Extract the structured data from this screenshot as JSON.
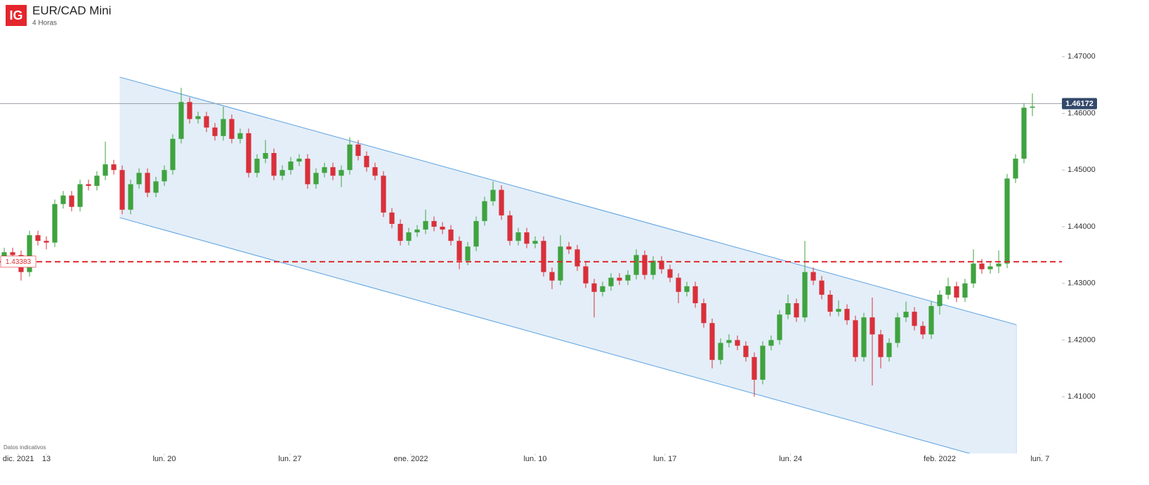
{
  "header": {
    "logo": "IG",
    "title": "EUR/CAD Mini",
    "subtitle": "4 Horas",
    "note": "Datos indicativos"
  },
  "chart_data": {
    "type": "candlestick",
    "up_color": "#3fa33f",
    "down_color": "#d9303a",
    "xlim": [
      0,
      124.5
    ],
    "ylim": [
      1.4,
      1.48
    ],
    "yticks": [
      {
        "value": 1.41,
        "label": "1.41000"
      },
      {
        "value": 1.42,
        "label": "1.42000"
      },
      {
        "value": 1.43,
        "label": "1.43000"
      },
      {
        "value": 1.44,
        "label": "1.44000"
      },
      {
        "value": 1.45,
        "label": "1.45000"
      },
      {
        "value": 1.46,
        "label": "1.46000"
      },
      {
        "value": 1.47,
        "label": "1.47000"
      }
    ],
    "xticks": [
      {
        "value": 2.17,
        "label": "dic. 2021"
      },
      {
        "value": 5.5,
        "label": "13"
      },
      {
        "value": 19.5,
        "label": "lun. 20"
      },
      {
        "value": 34.4,
        "label": "lun. 27"
      },
      {
        "value": 48.75,
        "label": "ene. 2022"
      },
      {
        "value": 63.5,
        "label": "lun. 10"
      },
      {
        "value": 78.9,
        "label": "lun. 17"
      },
      {
        "value": 93.8,
        "label": "lun. 24"
      },
      {
        "value": 111.5,
        "label": "feb. 2022"
      },
      {
        "value": 123.4,
        "label": "lun. 7"
      }
    ],
    "current_price": 1.46172,
    "current_color": "#9aa0a6",
    "current_box_color": "#33496a",
    "reference_level": 1.43383,
    "reference_color": "#e0282e",
    "channel": {
      "x": [
        14.2,
        120.6
      ],
      "upper": [
        1.4664,
        1.4227
      ],
      "lower": [
        1.4416,
        1.3977
      ],
      "fill": "#e3eef8",
      "stroke": "#5aa0e0"
    },
    "candles": [
      [
        1.434,
        1.4363,
        1.4332,
        1.4355
      ],
      [
        1.4355,
        1.4363,
        1.4342,
        1.435
      ],
      [
        1.435,
        1.4358,
        1.4305,
        1.432
      ],
      [
        1.432,
        1.4393,
        1.4312,
        1.4385
      ],
      [
        1.4385,
        1.4393,
        1.4367,
        1.4375
      ],
      [
        1.4375,
        1.4383,
        1.436,
        1.4372
      ],
      [
        1.4372,
        1.4448,
        1.4364,
        1.444
      ],
      [
        1.444,
        1.4463,
        1.4432,
        1.4455
      ],
      [
        1.4455,
        1.4463,
        1.4427,
        1.4435
      ],
      [
        1.4435,
        1.4483,
        1.4427,
        1.4475
      ],
      [
        1.4475,
        1.4483,
        1.4464,
        1.4472
      ],
      [
        1.4472,
        1.4498,
        1.4464,
        1.449
      ],
      [
        1.449,
        1.455,
        1.4482,
        1.451
      ],
      [
        1.451,
        1.4518,
        1.4492,
        1.45
      ],
      [
        1.45,
        1.4508,
        1.4422,
        1.443
      ],
      [
        1.443,
        1.4483,
        1.4422,
        1.4475
      ],
      [
        1.4475,
        1.4503,
        1.4467,
        1.4495
      ],
      [
        1.4495,
        1.4503,
        1.4452,
        1.446
      ],
      [
        1.446,
        1.4488,
        1.4452,
        1.448
      ],
      [
        1.448,
        1.4508,
        1.4472,
        1.45
      ],
      [
        1.45,
        1.4563,
        1.4492,
        1.4555
      ],
      [
        1.4555,
        1.4645,
        1.4547,
        1.462
      ],
      [
        1.462,
        1.4628,
        1.4582,
        1.459
      ],
      [
        1.459,
        1.4603,
        1.4582,
        1.4595
      ],
      [
        1.4595,
        1.4603,
        1.4567,
        1.4575
      ],
      [
        1.4575,
        1.4583,
        1.4552,
        1.456
      ],
      [
        1.456,
        1.4612,
        1.4552,
        1.459
      ],
      [
        1.459,
        1.4598,
        1.4547,
        1.4555
      ],
      [
        1.4555,
        1.4573,
        1.4547,
        1.4565
      ],
      [
        1.4565,
        1.4573,
        1.4487,
        1.4495
      ],
      [
        1.4495,
        1.4528,
        1.4487,
        1.452
      ],
      [
        1.452,
        1.4553,
        1.4512,
        1.453
      ],
      [
        1.453,
        1.4538,
        1.4482,
        1.449
      ],
      [
        1.449,
        1.4508,
        1.4482,
        1.45
      ],
      [
        1.45,
        1.4523,
        1.4492,
        1.4515
      ],
      [
        1.4515,
        1.4528,
        1.4507,
        1.452
      ],
      [
        1.452,
        1.4528,
        1.4467,
        1.4475
      ],
      [
        1.4475,
        1.4503,
        1.4467,
        1.4495
      ],
      [
        1.4495,
        1.4513,
        1.4487,
        1.4505
      ],
      [
        1.4505,
        1.4513,
        1.4482,
        1.449
      ],
      [
        1.449,
        1.4508,
        1.447,
        1.45
      ],
      [
        1.45,
        1.4558,
        1.4492,
        1.4545
      ],
      [
        1.4545,
        1.4553,
        1.4517,
        1.4525
      ],
      [
        1.4525,
        1.4533,
        1.4497,
        1.4505
      ],
      [
        1.4505,
        1.4513,
        1.4482,
        1.449
      ],
      [
        1.449,
        1.4498,
        1.4417,
        1.4425
      ],
      [
        1.4425,
        1.4433,
        1.4397,
        1.4405
      ],
      [
        1.4405,
        1.4413,
        1.4367,
        1.4375
      ],
      [
        1.4375,
        1.4398,
        1.4367,
        1.439
      ],
      [
        1.439,
        1.4403,
        1.4382,
        1.4395
      ],
      [
        1.4395,
        1.443,
        1.4387,
        1.441
      ],
      [
        1.441,
        1.4418,
        1.4392,
        1.44
      ],
      [
        1.44,
        1.4408,
        1.4387,
        1.4395
      ],
      [
        1.4395,
        1.4403,
        1.4367,
        1.4375
      ],
      [
        1.4375,
        1.4383,
        1.4325,
        1.434
      ],
      [
        1.434,
        1.4373,
        1.4332,
        1.4365
      ],
      [
        1.4365,
        1.4418,
        1.4357,
        1.441
      ],
      [
        1.441,
        1.4453,
        1.4402,
        1.4445
      ],
      [
        1.4445,
        1.448,
        1.4437,
        1.4465
      ],
      [
        1.4465,
        1.4473,
        1.4412,
        1.442
      ],
      [
        1.442,
        1.4428,
        1.4367,
        1.4375
      ],
      [
        1.4375,
        1.4398,
        1.4367,
        1.439
      ],
      [
        1.439,
        1.4398,
        1.4362,
        1.437
      ],
      [
        1.437,
        1.4383,
        1.4362,
        1.4375
      ],
      [
        1.4375,
        1.4383,
        1.4312,
        1.432
      ],
      [
        1.432,
        1.4328,
        1.429,
        1.4305
      ],
      [
        1.4305,
        1.4385,
        1.4297,
        1.4365
      ],
      [
        1.4365,
        1.4373,
        1.4352,
        1.436
      ],
      [
        1.436,
        1.4368,
        1.4322,
        1.433
      ],
      [
        1.433,
        1.4338,
        1.4292,
        1.43
      ],
      [
        1.43,
        1.4308,
        1.424,
        1.4285
      ],
      [
        1.4285,
        1.4303,
        1.4277,
        1.4295
      ],
      [
        1.4295,
        1.4318,
        1.4287,
        1.431
      ],
      [
        1.431,
        1.4318,
        1.4297,
        1.4305
      ],
      [
        1.4305,
        1.4323,
        1.4297,
        1.4315
      ],
      [
        1.4315,
        1.436,
        1.4307,
        1.435
      ],
      [
        1.435,
        1.4358,
        1.4307,
        1.4315
      ],
      [
        1.4315,
        1.4348,
        1.4307,
        1.434
      ],
      [
        1.434,
        1.4348,
        1.4317,
        1.4325
      ],
      [
        1.4325,
        1.4333,
        1.4302,
        1.431
      ],
      [
        1.431,
        1.4318,
        1.4265,
        1.4285
      ],
      [
        1.4285,
        1.4303,
        1.4277,
        1.4295
      ],
      [
        1.4295,
        1.4303,
        1.4257,
        1.4265
      ],
      [
        1.4265,
        1.4273,
        1.4222,
        1.423
      ],
      [
        1.423,
        1.4238,
        1.415,
        1.4165
      ],
      [
        1.4165,
        1.4203,
        1.4157,
        1.4195
      ],
      [
        1.4195,
        1.421,
        1.4187,
        1.42
      ],
      [
        1.42,
        1.4208,
        1.4182,
        1.419
      ],
      [
        1.419,
        1.4198,
        1.4162,
        1.417
      ],
      [
        1.417,
        1.4178,
        1.41,
        1.413
      ],
      [
        1.413,
        1.4198,
        1.4122,
        1.419
      ],
      [
        1.419,
        1.4208,
        1.4182,
        1.42
      ],
      [
        1.42,
        1.4253,
        1.4192,
        1.4245
      ],
      [
        1.4245,
        1.428,
        1.4237,
        1.4265
      ],
      [
        1.4265,
        1.4273,
        1.4232,
        1.424
      ],
      [
        1.424,
        1.4375,
        1.4232,
        1.432
      ],
      [
        1.432,
        1.4328,
        1.4297,
        1.4305
      ],
      [
        1.4305,
        1.4313,
        1.4272,
        1.428
      ],
      [
        1.428,
        1.4288,
        1.4242,
        1.425
      ],
      [
        1.425,
        1.427,
        1.4242,
        1.4255
      ],
      [
        1.4255,
        1.4263,
        1.4227,
        1.4235
      ],
      [
        1.4235,
        1.4243,
        1.4162,
        1.417
      ],
      [
        1.417,
        1.4248,
        1.4162,
        1.424
      ],
      [
        1.424,
        1.4275,
        1.412,
        1.421
      ],
      [
        1.421,
        1.4218,
        1.415,
        1.417
      ],
      [
        1.417,
        1.4203,
        1.4162,
        1.4195
      ],
      [
        1.4195,
        1.4248,
        1.4187,
        1.424
      ],
      [
        1.424,
        1.4268,
        1.4232,
        1.425
      ],
      [
        1.425,
        1.4258,
        1.4217,
        1.4225
      ],
      [
        1.4225,
        1.4233,
        1.4202,
        1.421
      ],
      [
        1.421,
        1.4268,
        1.4202,
        1.426
      ],
      [
        1.426,
        1.4288,
        1.4245,
        1.428
      ],
      [
        1.428,
        1.431,
        1.4272,
        1.4295
      ],
      [
        1.4295,
        1.4303,
        1.4267,
        1.4275
      ],
      [
        1.4275,
        1.4308,
        1.4267,
        1.43
      ],
      [
        1.43,
        1.436,
        1.4292,
        1.4335
      ],
      [
        1.4335,
        1.4343,
        1.4317,
        1.4325
      ],
      [
        1.4325,
        1.4338,
        1.4317,
        1.433
      ],
      [
        1.433,
        1.4358,
        1.4318,
        1.4335
      ],
      [
        1.4335,
        1.4493,
        1.4327,
        1.4485
      ],
      [
        1.4485,
        1.4528,
        1.4477,
        1.452
      ],
      [
        1.452,
        1.4618,
        1.4512,
        1.461
      ],
      [
        1.461,
        1.4635,
        1.4595,
        1.4612
      ]
    ]
  }
}
